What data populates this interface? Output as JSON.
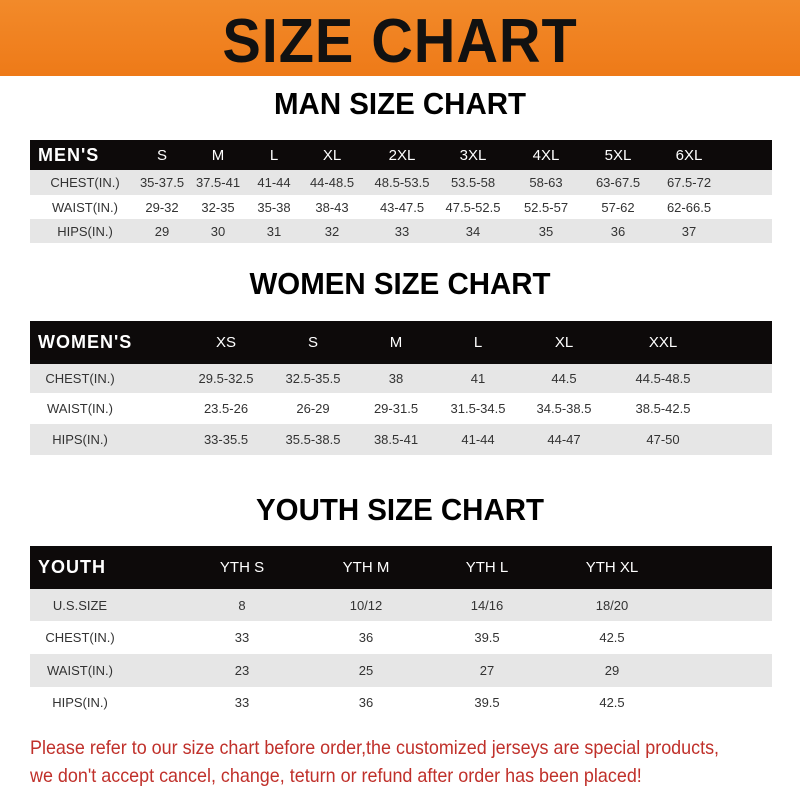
{
  "title": "SIZE CHART",
  "colors": {
    "banner": "#f08020",
    "header_row": "#0d0a0a",
    "note": "#c0302a"
  },
  "men": {
    "heading": "MAN SIZE CHART",
    "header": [
      "MEN'S",
      "S",
      "M",
      "L",
      "XL",
      "2XL",
      "3XL",
      "4XL",
      "5XL",
      "6XL"
    ],
    "rows": [
      [
        "CHEST(IN.)",
        "35-37.5",
        "37.5-41",
        "41-44",
        "44-48.5",
        "48.5-53.5",
        "53.5-58",
        "58-63",
        "63-67.5",
        "67.5-72"
      ],
      [
        "WAIST(IN.)",
        "29-32",
        "32-35",
        "35-38",
        "38-43",
        "43-47.5",
        "47.5-52.5",
        "52.5-57",
        "57-62",
        "62-66.5"
      ],
      [
        "HIPS(IN.)",
        "29",
        "30",
        "31",
        "32",
        "33",
        "34",
        "35",
        "36",
        "37"
      ]
    ]
  },
  "women": {
    "heading": "WOMEN SIZE CHART",
    "header": [
      "WOMEN'S",
      "XS",
      "S",
      "M",
      "L",
      "XL",
      "XXL"
    ],
    "rows": [
      [
        "CHEST(IN.)",
        "29.5-32.5",
        "32.5-35.5",
        "38",
        "41",
        "44.5",
        "44.5-48.5"
      ],
      [
        "WAIST(IN.)",
        "23.5-26",
        "26-29",
        "29-31.5",
        "31.5-34.5",
        "34.5-38.5",
        "38.5-42.5"
      ],
      [
        "HIPS(IN.)",
        "33-35.5",
        "35.5-38.5",
        "38.5-41",
        "41-44",
        "44-47",
        "47-50"
      ]
    ]
  },
  "youth": {
    "heading": "YOUTH SIZE CHART",
    "header": [
      "YOUTH",
      "YTH S",
      "YTH M",
      "YTH L",
      "YTH XL"
    ],
    "rows": [
      [
        "U.S.SIZE",
        "8",
        "10/12",
        "14/16",
        "18/20"
      ],
      [
        "CHEST(IN.)",
        "33",
        "36",
        "39.5",
        "42.5"
      ],
      [
        "WAIST(IN.)",
        "23",
        "25",
        "27",
        "29"
      ],
      [
        "HIPS(IN.)",
        "33",
        "36",
        "39.5",
        "42.5"
      ]
    ]
  },
  "note": [
    "Please refer to our size chart before order,the customized jerseys are special products,",
    "we don't accept cancel, change, teturn or refund after order has been placed!"
  ]
}
